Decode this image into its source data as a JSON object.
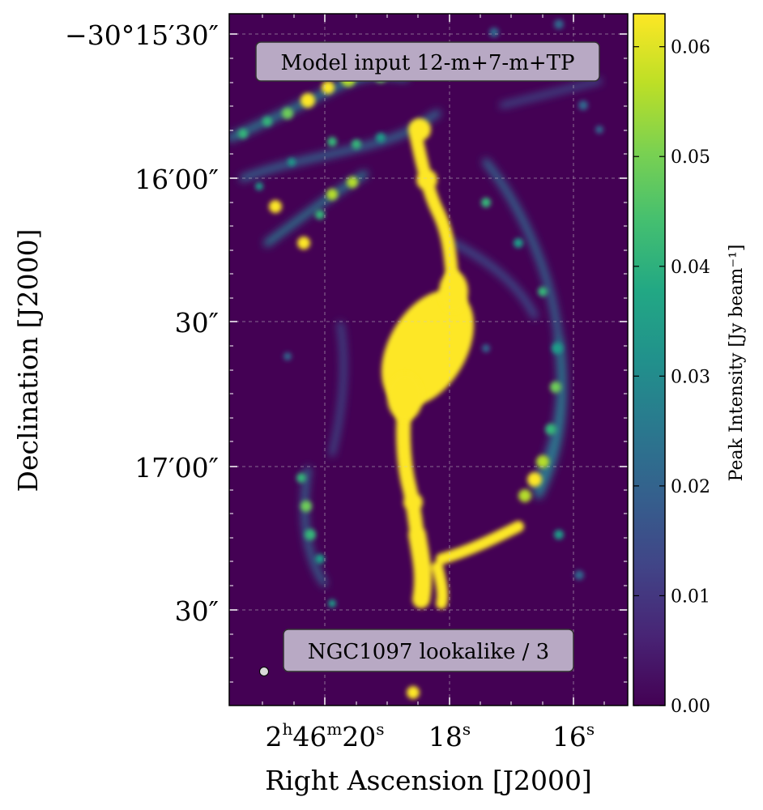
{
  "chart_data": {
    "type": "heatmap",
    "title": "",
    "xlabel": "Right Ascension [J2000]",
    "ylabel": "Declination [J2000]",
    "x_ticks": [
      {
        "hms": "2h46m20s",
        "main": "2",
        "sup1": "h",
        "mid": "46",
        "sup2": "m",
        "end": "20",
        "sup3": "s"
      },
      {
        "hms": "18s",
        "main": "18",
        "sup": "s"
      },
      {
        "hms": "16s",
        "main": "16",
        "sup": "s"
      }
    ],
    "y_ticks": [
      "−30°15′30″",
      "16′00″",
      "30″",
      "17′00″",
      "30″"
    ],
    "colorbar": {
      "label": "Peak Intensity [Jy beam⁻¹]",
      "ticks": [
        "0.00",
        "0.01",
        "0.02",
        "0.03",
        "0.04",
        "0.05",
        "0.06"
      ],
      "range": [
        0.0,
        0.063
      ],
      "colormap": "viridis"
    },
    "annotations": [
      "Model input 12-m+7-m+TP",
      "NGC1097 lookalike / 3"
    ],
    "grid": true,
    "colors": {
      "background": "#440154",
      "peak": "#fde725",
      "label_box": "#b8a9c4"
    }
  }
}
